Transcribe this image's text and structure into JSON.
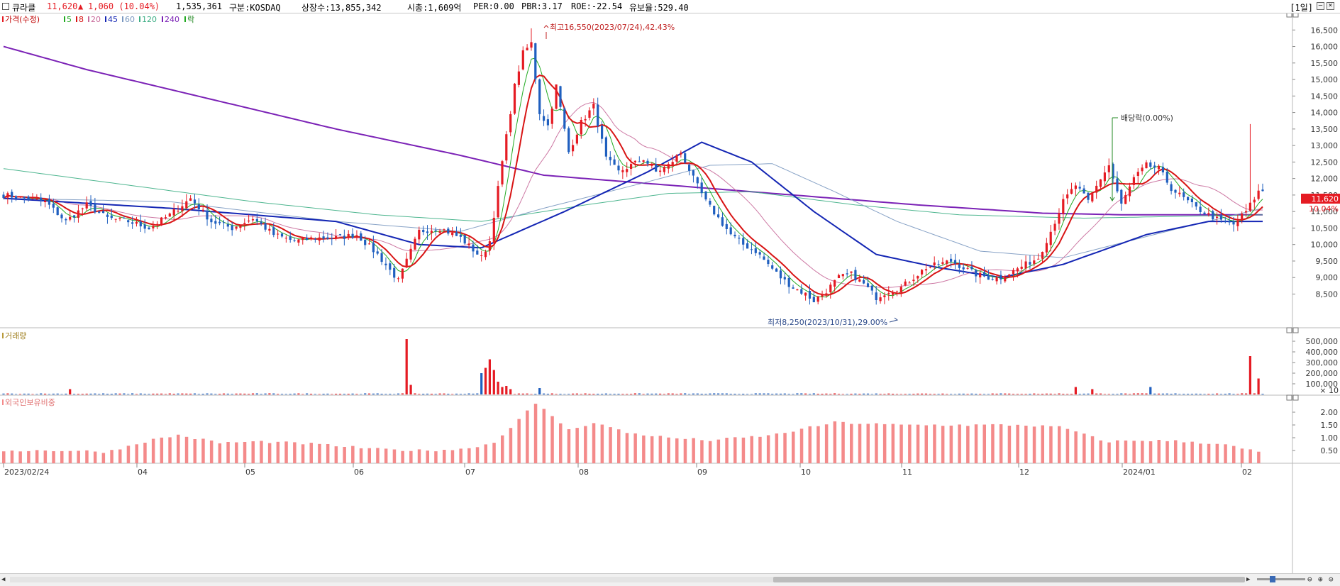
{
  "header": {
    "name": "큐라클",
    "price": "11,620",
    "arrow": "▲",
    "change": "1,060 (10.04%)",
    "volume": "1,535,361",
    "market": "구분:KOSDAQ",
    "shares": "상장수:13,855,342",
    "mcap": "시총:1,609억",
    "per": "PER:0.00",
    "pbr": "PBR:3.17",
    "roe": "ROE:-22.54",
    "reserve": "유보율:529.40",
    "period": "[1일]"
  },
  "legend": {
    "price": "가격(수정)",
    "ma5": "5",
    "ma8": "8",
    "ma20": "20",
    "ma45": "45",
    "ma60": "60",
    "ma120": "120",
    "ma240": "240",
    "drop": "락"
  },
  "colors": {
    "up": "#e51b23",
    "down": "#1f5fbf",
    "ma5": "#22aa22",
    "ma8": "#d81414",
    "ma20": "#c86a9a",
    "ma45": "#1426b4",
    "ma60": "#7a98c0",
    "ma120": "#3cae84",
    "ma240": "#7b22b6",
    "foreign": "#f48a8a"
  },
  "annotations": {
    "high": "최고16,550(2023/07/24),42.43%",
    "low": "최저8,250(2023/10/31),29.00%",
    "dividend": "배당락(0.00%)"
  },
  "current": {
    "price_label": "11,620",
    "pct_label": "10.04%"
  },
  "panels": {
    "volume_title": "거래량",
    "foreign_title": "외국인보유비중",
    "volume_unit": "× 10"
  },
  "chart_data": [
    {
      "type": "candlestick",
      "title": "가격(수정)",
      "y_ticks": [
        "8,500",
        "9,000",
        "9,500",
        "10,000",
        "10,500",
        "11,000",
        "11,500",
        "12,000",
        "12,500",
        "13,000",
        "13,500",
        "14,000",
        "14,500",
        "15,000",
        "15,500",
        "16,000",
        "16,500"
      ],
      "ylim": [
        7500,
        17000
      ],
      "x_ticks": [
        "2023/02/24",
        "04",
        "05",
        "06",
        "07",
        "08",
        "09",
        "10",
        "11",
        "12",
        "2024/01",
        "02"
      ],
      "close_anchors": [
        [
          0,
          11500
        ],
        [
          10,
          11300
        ],
        [
          15,
          10700
        ],
        [
          20,
          11200
        ],
        [
          25,
          10800
        ],
        [
          30,
          10700
        ],
        [
          35,
          10500
        ],
        [
          40,
          10900
        ],
        [
          45,
          11400
        ],
        [
          50,
          10700
        ],
        [
          55,
          10500
        ],
        [
          60,
          10800
        ],
        [
          65,
          10300
        ],
        [
          70,
          10100
        ],
        [
          75,
          10200
        ],
        [
          80,
          10200
        ],
        [
          85,
          10300
        ],
        [
          90,
          9700
        ],
        [
          95,
          8900
        ],
        [
          100,
          10400
        ],
        [
          105,
          10500
        ],
        [
          110,
          10200
        ],
        [
          115,
          9600
        ],
        [
          117,
          10100
        ],
        [
          120,
          12500
        ],
        [
          123,
          14800
        ],
        [
          125,
          15800
        ],
        [
          127,
          16100
        ],
        [
          129,
          14000
        ],
        [
          131,
          13600
        ],
        [
          133,
          14800
        ],
        [
          136,
          12800
        ],
        [
          139,
          13700
        ],
        [
          142,
          14200
        ],
        [
          145,
          12600
        ],
        [
          148,
          12200
        ],
        [
          151,
          12400
        ],
        [
          154,
          12600
        ],
        [
          157,
          12200
        ],
        [
          160,
          12400
        ],
        [
          163,
          12800
        ],
        [
          166,
          12000
        ],
        [
          169,
          11300
        ],
        [
          172,
          10800
        ],
        [
          175,
          10300
        ],
        [
          178,
          10000
        ],
        [
          181,
          9800
        ],
        [
          184,
          9400
        ],
        [
          187,
          9000
        ],
        [
          190,
          8700
        ],
        [
          193,
          8500
        ],
        [
          195,
          8300
        ],
        [
          198,
          8600
        ],
        [
          201,
          9000
        ],
        [
          204,
          9100
        ],
        [
          207,
          8800
        ],
        [
          210,
          8400
        ],
        [
          213,
          8600
        ],
        [
          216,
          8700
        ],
        [
          219,
          9000
        ],
        [
          222,
          9300
        ],
        [
          225,
          9400
        ],
        [
          228,
          9500
        ],
        [
          231,
          9300
        ],
        [
          234,
          9100
        ],
        [
          237,
          9000
        ],
        [
          240,
          9000
        ],
        [
          243,
          9200
        ],
        [
          246,
          9400
        ],
        [
          249,
          9600
        ],
        [
          252,
          10400
        ],
        [
          255,
          11300
        ],
        [
          258,
          11800
        ],
        [
          261,
          11300
        ],
        [
          264,
          12000
        ],
        [
          266,
          12400
        ],
        [
          269,
          11200
        ],
        [
          272,
          12000
        ],
        [
          275,
          12400
        ],
        [
          278,
          12300
        ],
        [
          281,
          11700
        ],
        [
          284,
          11400
        ],
        [
          287,
          11100
        ],
        [
          290,
          10900
        ],
        [
          293,
          10700
        ],
        [
          296,
          10600
        ],
        [
          299,
          11000
        ],
        [
          302,
          11600
        ]
      ],
      "ma240_anchors": [
        [
          0,
          16000
        ],
        [
          20,
          15300
        ],
        [
          50,
          14400
        ],
        [
          80,
          13500
        ],
        [
          110,
          12700
        ],
        [
          130,
          12100
        ],
        [
          160,
          11800
        ],
        [
          190,
          11500
        ],
        [
          220,
          11200
        ],
        [
          250,
          10950
        ],
        [
          270,
          10900
        ],
        [
          303,
          10900
        ]
      ],
      "ma120_anchors": [
        [
          0,
          12300
        ],
        [
          30,
          11800
        ],
        [
          60,
          11300
        ],
        [
          90,
          10900
        ],
        [
          115,
          10700
        ],
        [
          140,
          11200
        ],
        [
          160,
          11550
        ],
        [
          180,
          11600
        ],
        [
          205,
          11200
        ],
        [
          230,
          10900
        ],
        [
          260,
          10800
        ],
        [
          303,
          10900
        ]
      ],
      "ma60_anchors": [
        [
          0,
          11400
        ],
        [
          40,
          11300
        ],
        [
          80,
          10700
        ],
        [
          110,
          10400
        ],
        [
          130,
          11100
        ],
        [
          155,
          11900
        ],
        [
          170,
          12400
        ],
        [
          185,
          12450
        ],
        [
          200,
          11600
        ],
        [
          215,
          10700
        ],
        [
          235,
          9800
        ],
        [
          255,
          9600
        ],
        [
          280,
          10400
        ],
        [
          303,
          11100
        ]
      ],
      "ma45_anchors": [
        [
          0,
          11400
        ],
        [
          40,
          11100
        ],
        [
          80,
          10700
        ],
        [
          100,
          10000
        ],
        [
          115,
          9900
        ],
        [
          135,
          11000
        ],
        [
          155,
          12200
        ],
        [
          168,
          13100
        ],
        [
          180,
          12500
        ],
        [
          195,
          11000
        ],
        [
          210,
          9700
        ],
        [
          225,
          9300
        ],
        [
          240,
          9000
        ],
        [
          255,
          9400
        ],
        [
          275,
          10300
        ],
        [
          290,
          10700
        ],
        [
          303,
          10700
        ]
      ]
    },
    {
      "type": "bar",
      "title": "거래량",
      "y_ticks": [
        "100,000",
        "200,000",
        "300,000",
        "400,000",
        "500,000"
      ],
      "unit": "× 10",
      "spikes": [
        [
          16,
          50
        ],
        [
          97,
          520
        ],
        [
          98,
          90
        ],
        [
          115,
          200
        ],
        [
          116,
          250
        ],
        [
          117,
          330
        ],
        [
          118,
          230
        ],
        [
          119,
          120
        ],
        [
          120,
          70
        ],
        [
          121,
          80
        ],
        [
          122,
          50
        ],
        [
          129,
          60
        ],
        [
          258,
          70
        ],
        [
          262,
          50
        ],
        [
          276,
          70
        ],
        [
          300,
          360
        ],
        [
          302,
          150
        ]
      ]
    },
    {
      "type": "bar",
      "title": "외국인보유비중",
      "y_ticks": [
        "0.50",
        "1.00",
        "1.50",
        "2.00"
      ],
      "ylim": [
        0,
        2.5
      ],
      "value_anchors": [
        [
          0,
          0.5
        ],
        [
          15,
          0.5
        ],
        [
          25,
          0.45
        ],
        [
          35,
          0.9
        ],
        [
          42,
          1.1
        ],
        [
          52,
          0.8
        ],
        [
          62,
          0.85
        ],
        [
          75,
          0.75
        ],
        [
          90,
          0.55
        ],
        [
          100,
          0.5
        ],
        [
          110,
          0.55
        ],
        [
          118,
          0.8
        ],
        [
          125,
          1.9
        ],
        [
          128,
          2.3
        ],
        [
          131,
          2.0
        ],
        [
          136,
          1.3
        ],
        [
          142,
          1.6
        ],
        [
          150,
          1.2
        ],
        [
          160,
          1.0
        ],
        [
          170,
          0.9
        ],
        [
          185,
          1.1
        ],
        [
          200,
          1.6
        ],
        [
          215,
          1.5
        ],
        [
          230,
          1.5
        ],
        [
          245,
          1.5
        ],
        [
          255,
          1.4
        ],
        [
          265,
          0.85
        ],
        [
          275,
          0.9
        ],
        [
          285,
          0.85
        ],
        [
          293,
          0.75
        ],
        [
          303,
          0.4
        ]
      ]
    }
  ]
}
